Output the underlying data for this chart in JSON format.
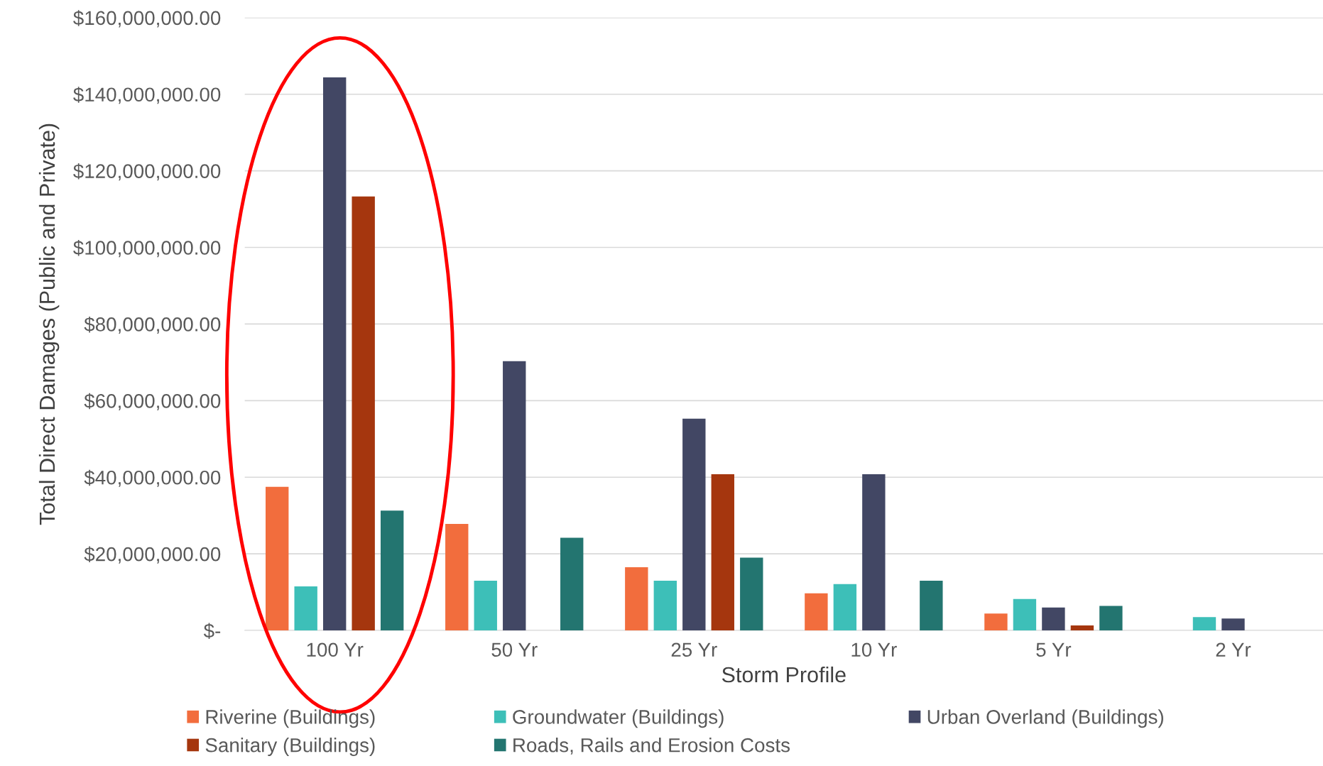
{
  "chart_data": {
    "type": "bar",
    "xlabel": "Storm Profile",
    "ylabel": "Total Direct Damages (Public and Private)",
    "categories": [
      "100 Yr",
      "50 Yr",
      "25 Yr",
      "10 Yr",
      "5 Yr",
      "2 Yr"
    ],
    "series": [
      {
        "name": "Riverine (Buildings)",
        "color": "#f26d3d",
        "values": [
          37500000,
          27800000,
          16500000,
          9700000,
          4400000,
          0
        ]
      },
      {
        "name": "Groundwater (Buildings)",
        "color": "#3dbfb8",
        "values": [
          11500000,
          13000000,
          13000000,
          12100000,
          8200000,
          3500000
        ]
      },
      {
        "name": "Urban Overland (Buildings)",
        "color": "#424764",
        "values": [
          144400000,
          70300000,
          55300000,
          40800000,
          6000000,
          3100000
        ]
      },
      {
        "name": "Sanitary (Buildings)",
        "color": "#a5360e",
        "values": [
          113300000,
          0,
          40800000,
          0,
          1300000,
          0
        ]
      },
      {
        "name": "Roads, Rails and Erosion Costs",
        "color": "#237570",
        "values": [
          31300000,
          24200000,
          19000000,
          13000000,
          6400000,
          0
        ]
      }
    ],
    "ylim": [
      0,
      160000000
    ],
    "yticks": [
      {
        "value": 0,
        "label": "$-"
      },
      {
        "value": 20000000,
        "label": "$20,000,000.00"
      },
      {
        "value": 40000000,
        "label": "$40,000,000.00"
      },
      {
        "value": 60000000,
        "label": "$60,000,000.00"
      },
      {
        "value": 80000000,
        "label": "$80,000,000.00"
      },
      {
        "value": 100000000,
        "label": "$100,000,000.00"
      },
      {
        "value": 120000000,
        "label": "$120,000,000.00"
      },
      {
        "value": 140000000,
        "label": "$140,000,000.00"
      },
      {
        "value": 160000000,
        "label": "$160,000,000.00"
      }
    ],
    "grid": "y",
    "legend": "bottom"
  }
}
